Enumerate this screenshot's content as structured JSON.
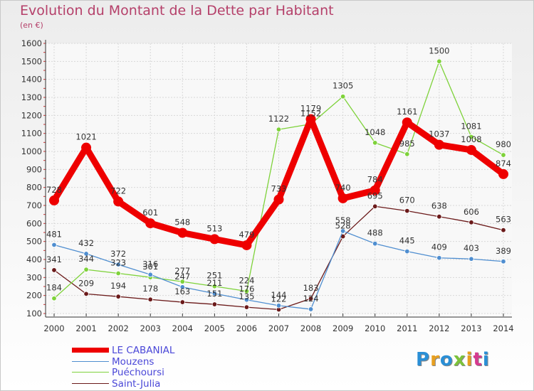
{
  "title": "Evolution du Montant de la Dette par Habitant",
  "subtitle": "(en €)",
  "logo_text": "Proxiti",
  "chart_data": {
    "type": "line",
    "title": "Evolution du Montant de la Dette par Habitant",
    "subtitle": "(en €)",
    "xlabel": "",
    "ylabel": "",
    "categories": [
      "2000",
      "2001",
      "2002",
      "2003",
      "2004",
      "2005",
      "2006",
      "2007",
      "2008",
      "2009",
      "2010",
      "2011",
      "2012",
      "2013",
      "2014"
    ],
    "ylim": [
      100,
      1600
    ],
    "yticks": [
      "100",
      "200",
      "300",
      "400",
      "500",
      "600",
      "700",
      "800",
      "900",
      "1000",
      "1100",
      "1200",
      "1300",
      "1400",
      "1500",
      "1600"
    ],
    "grid": true,
    "legend_position": "bottom-left",
    "series": [
      {
        "name": "LE CABANIAL",
        "color": "#ee0000",
        "values": [
          728,
          1021,
          722,
          601,
          548,
          513,
          479,
          733,
          1179,
          740,
          784,
          1161,
          1037,
          1008,
          874
        ],
        "labels": [
          "728",
          "1021",
          "722",
          "601",
          "548",
          "513",
          "479",
          "733",
          "1179",
          "740",
          "784",
          "1161",
          "1037",
          "1008",
          "874"
        ]
      },
      {
        "name": "Mouzens",
        "color": "#4f8ed0",
        "values": [
          481,
          432,
          372,
          316,
          247,
          211,
          176,
          144,
          124,
          558,
          488,
          445,
          409,
          403,
          389
        ],
        "labels": [
          "481",
          "432",
          "372",
          "316",
          "247",
          "211",
          "176",
          "144",
          "124",
          "558",
          "488",
          "445",
          "409",
          "403",
          "389"
        ]
      },
      {
        "name": "Puéchoursi",
        "color": "#7ed23a",
        "values": [
          184,
          344,
          323,
          301,
          277,
          251,
          224,
          1122,
          1152,
          1305,
          1048,
          985,
          1500,
          1081,
          980
        ],
        "labels": [
          "184",
          "344",
          "323",
          "301",
          "277",
          "251",
          "224",
          "1122",
          "1152",
          "1305",
          "1048",
          "985",
          "1500",
          "1081",
          "980"
        ]
      },
      {
        "name": "Saint-Julia",
        "color": "#6b1a1a",
        "values": [
          341,
          209,
          194,
          178,
          163,
          151,
          135,
          122,
          183,
          528,
          695,
          670,
          638,
          606,
          563
        ],
        "labels": [
          "341",
          "209",
          "194",
          "178",
          "163",
          "151",
          "135",
          "122",
          "183",
          "528",
          "695",
          "670",
          "638",
          "606",
          "563"
        ]
      }
    ]
  }
}
